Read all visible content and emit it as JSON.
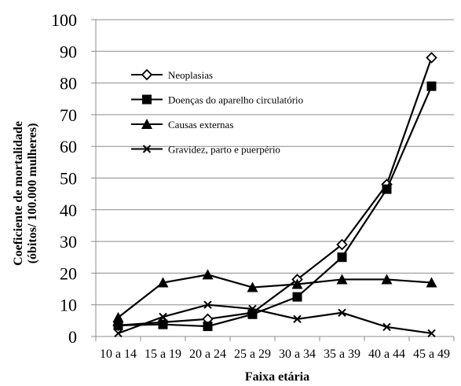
{
  "chart_data": {
    "type": "line",
    "categories": [
      "10 a 14",
      "15 a 19",
      "20 a 24",
      "25 a 29",
      "30 a 34",
      "35 a 39",
      "40 a 44",
      "45 a 49"
    ],
    "xlabel": "Faixa etária",
    "ylabel_line1": "Coeficiente de mortalidade",
    "ylabel_line2": "(óbitos/ 100.000 mulheres)",
    "ylim": [
      0,
      100
    ],
    "yticks": [
      0,
      10,
      20,
      30,
      40,
      50,
      60,
      70,
      80,
      90,
      100
    ],
    "grid": "horizontal",
    "legend_placement": "top-left inside",
    "series": [
      {
        "name": "Neoplasias",
        "marker": "diamond-open",
        "values": [
          3.5,
          4.5,
          5.5,
          7.5,
          18,
          29,
          48,
          88
        ]
      },
      {
        "name": "Doenças do aparelho circulatório",
        "marker": "square-filled",
        "values": [
          3.5,
          3.8,
          3.2,
          7.0,
          12.5,
          25,
          46.5,
          79
        ]
      },
      {
        "name": "Causas externas",
        "marker": "triangle-filled",
        "values": [
          6.0,
          17,
          19.5,
          15.5,
          16.5,
          18,
          18,
          17
        ]
      },
      {
        "name": "Gravidez, parto e puerpério",
        "marker": "x",
        "values": [
          1.0,
          6.2,
          10,
          8.7,
          5.5,
          7.5,
          3.0,
          1.0
        ]
      }
    ]
  }
}
